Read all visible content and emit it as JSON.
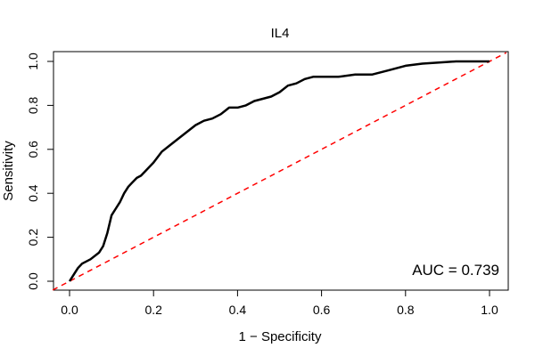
{
  "chart_data": {
    "type": "line",
    "title": "IL4",
    "xlabel": "1 − Specificity",
    "ylabel": "Sensitivity",
    "xlim": [
      0,
      1
    ],
    "ylim": [
      0,
      1
    ],
    "x_ticks": [
      "0.0",
      "0.2",
      "0.4",
      "0.6",
      "0.8",
      "1.0"
    ],
    "y_ticks": [
      "0.0",
      "0.2",
      "0.4",
      "0.6",
      "0.8",
      "1.0"
    ],
    "grid": false,
    "annotation": "AUC = 0.739",
    "annotation_position": "bottom-right",
    "series": [
      {
        "name": "ROC curve",
        "color": "#000000",
        "x": [
          0.0,
          0.01,
          0.02,
          0.03,
          0.05,
          0.07,
          0.08,
          0.09,
          0.1,
          0.11,
          0.12,
          0.13,
          0.14,
          0.15,
          0.16,
          0.17,
          0.18,
          0.2,
          0.22,
          0.24,
          0.26,
          0.28,
          0.3,
          0.32,
          0.34,
          0.36,
          0.38,
          0.4,
          0.42,
          0.44,
          0.46,
          0.48,
          0.5,
          0.52,
          0.54,
          0.56,
          0.58,
          0.6,
          0.64,
          0.68,
          0.72,
          0.76,
          0.8,
          0.84,
          0.88,
          0.92,
          0.96,
          1.0
        ],
        "y": [
          0.0,
          0.03,
          0.06,
          0.08,
          0.1,
          0.13,
          0.16,
          0.22,
          0.3,
          0.33,
          0.36,
          0.4,
          0.43,
          0.45,
          0.47,
          0.48,
          0.5,
          0.54,
          0.59,
          0.62,
          0.65,
          0.68,
          0.71,
          0.73,
          0.74,
          0.76,
          0.79,
          0.79,
          0.8,
          0.82,
          0.83,
          0.84,
          0.86,
          0.89,
          0.9,
          0.92,
          0.93,
          0.93,
          0.93,
          0.94,
          0.94,
          0.96,
          0.98,
          0.99,
          0.995,
          1.0,
          1.0,
          1.0
        ]
      },
      {
        "name": "Chance line",
        "color": "#ff0000",
        "style": "dashed",
        "x": [
          0,
          1
        ],
        "y": [
          0,
          1
        ]
      }
    ]
  }
}
